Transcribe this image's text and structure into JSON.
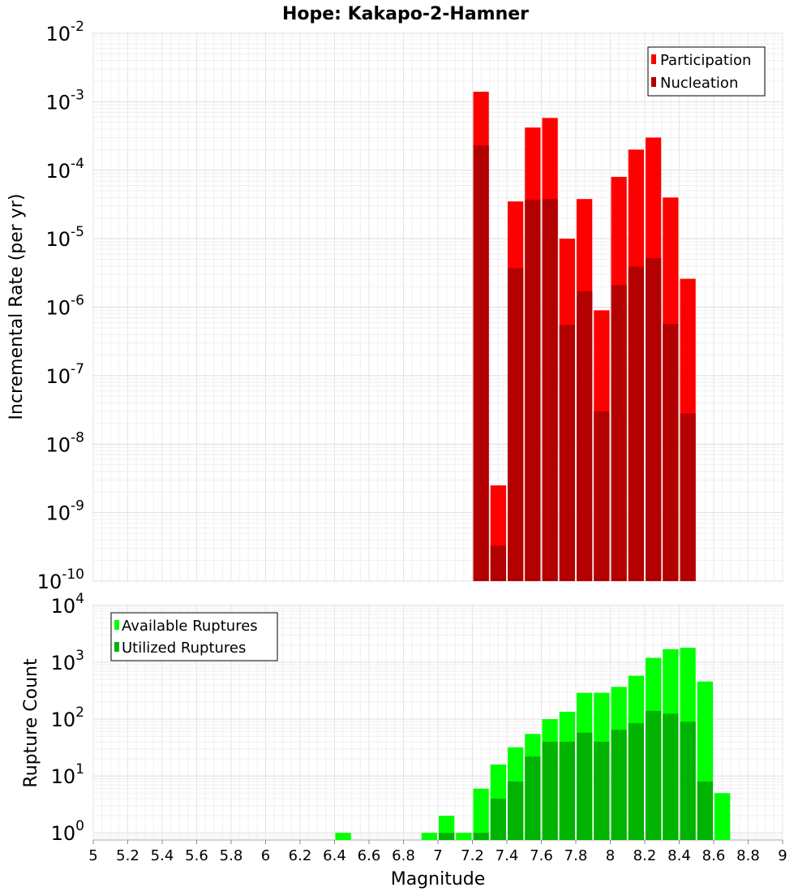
{
  "title": "Hope: Kakapo-2-Hamner",
  "xlabel": "Magnitude",
  "x_ticks": [
    "5",
    "5.2",
    "5.4",
    "5.6",
    "5.8",
    "6",
    "6.2",
    "6.4",
    "6.6",
    "6.8",
    "7",
    "7.2",
    "7.4",
    "7.6",
    "7.8",
    "8",
    "8.2",
    "8.4",
    "8.6",
    "8.8",
    "9"
  ],
  "colors": {
    "participation": "#ff0000",
    "nucleation": "#b30000",
    "available": "#00ff00",
    "utilized": "#00b300"
  },
  "chart_data": [
    {
      "type": "bar",
      "ylabel": "Incremental Rate (per yr)",
      "y_scale": "log",
      "ylim": [
        1e-10,
        0.01
      ],
      "xlim": [
        5,
        9
      ],
      "y_tick_bases": [
        "10",
        "10",
        "10",
        "10",
        "10",
        "10",
        "10",
        "10",
        "10"
      ],
      "y_tick_exponents": [
        "-10",
        "-9",
        "-8",
        "-7",
        "-6",
        "-5",
        "-4",
        "-3",
        "-2"
      ],
      "legend": {
        "position": "top-right",
        "entries": [
          "Participation",
          "Nucleation"
        ]
      },
      "x": [
        7.25,
        7.35,
        7.45,
        7.55,
        7.65,
        7.75,
        7.85,
        7.95,
        8.05,
        8.15,
        8.25,
        8.35,
        8.45
      ],
      "series": [
        {
          "name": "Participation",
          "values": [
            0.0014,
            2.5e-09,
            3.5e-05,
            0.00042,
            0.00058,
            1e-05,
            3.8e-05,
            9e-07,
            8e-05,
            0.0002,
            0.0003,
            4e-05,
            2.6e-06
          ]
        },
        {
          "name": "Nucleation",
          "values": [
            0.00023,
            3.3e-10,
            3.7e-06,
            3.7e-05,
            3.8e-05,
            5.5e-07,
            1.7e-06,
            3e-08,
            2.1e-06,
            3.9e-06,
            5.2e-06,
            5.7e-07,
            2.8e-08
          ]
        }
      ]
    },
    {
      "type": "bar",
      "ylabel": "Rupture Count",
      "y_scale": "log",
      "ylim": [
        0.75,
        10000
      ],
      "xlim": [
        5,
        9
      ],
      "y_tick_bases": [
        "10",
        "10",
        "10",
        "10",
        "10"
      ],
      "y_tick_exponents": [
        "0",
        "1",
        "2",
        "3",
        "4"
      ],
      "legend": {
        "position": "top-left",
        "entries": [
          "Available Ruptures",
          "Utilized Ruptures"
        ]
      },
      "x": [
        6.45,
        6.95,
        7.05,
        7.15,
        7.25,
        7.35,
        7.45,
        7.55,
        7.65,
        7.75,
        7.85,
        7.95,
        8.05,
        8.15,
        8.25,
        8.35,
        8.45,
        8.55,
        8.65
      ],
      "series": [
        {
          "name": "Available Ruptures",
          "values": [
            1,
            1,
            2,
            1,
            6,
            16,
            32,
            55,
            100,
            135,
            290,
            290,
            370,
            580,
            1200,
            1700,
            1800,
            460,
            5
          ]
        },
        {
          "name": "Utilized Ruptures",
          "values": [
            0,
            0,
            1,
            0,
            1,
            4,
            8,
            22,
            40,
            40,
            58,
            40,
            65,
            85,
            140,
            125,
            90,
            8,
            0
          ]
        }
      ]
    }
  ]
}
